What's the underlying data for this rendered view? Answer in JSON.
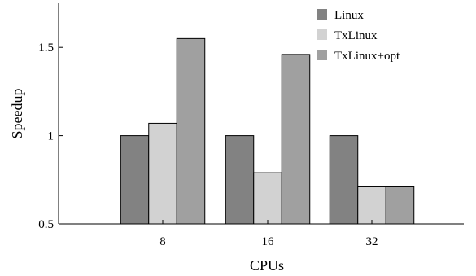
{
  "chart_data": {
    "type": "bar",
    "categories": [
      "8",
      "16",
      "32"
    ],
    "series": [
      {
        "name": "Linux",
        "values": [
          1.0,
          1.0,
          1.0
        ],
        "color": "#828282"
      },
      {
        "name": "TxLinux",
        "values": [
          1.07,
          0.79,
          0.71
        ],
        "color": "#d2d2d2"
      },
      {
        "name": "TxLinux+opt",
        "values": [
          1.55,
          1.46,
          0.71
        ],
        "color": "#a0a0a0"
      }
    ],
    "title": "",
    "xlabel": "CPUs",
    "ylabel": "Speedup",
    "ylim": [
      0.5,
      1.75
    ],
    "yticks": [
      0.5,
      1,
      1.5
    ],
    "ytick_labels": [
      "0.5",
      "1",
      "1.5"
    ],
    "grid": false,
    "legend_position": "top-right"
  }
}
